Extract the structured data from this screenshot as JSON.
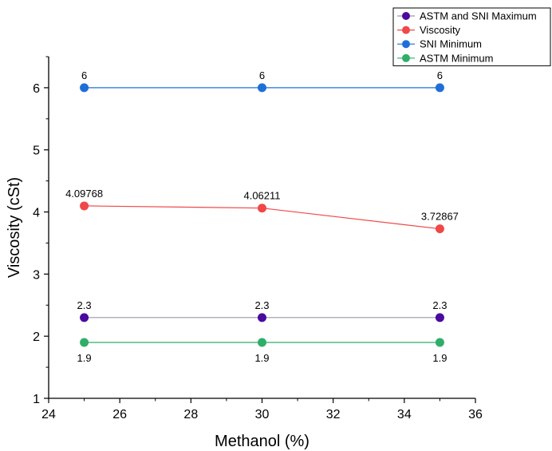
{
  "chart_data": {
    "type": "line",
    "xlabel": "Methanol (%)",
    "ylabel": "Viscosity (cSt)",
    "xlim": [
      24,
      36
    ],
    "ylim": [
      1,
      6.5
    ],
    "x_ticks": [
      24,
      26,
      28,
      30,
      32,
      34,
      36
    ],
    "y_ticks": [
      1,
      2,
      3,
      4,
      5,
      6
    ],
    "x": [
      25,
      30,
      35
    ],
    "legend_position": "top-right",
    "series": [
      {
        "name": "ASTM and SNI Maximum",
        "color": "#4a0a9e",
        "line_color": "#9e95a6",
        "values": [
          2.3,
          2.3,
          2.3
        ],
        "labels": [
          "2.3",
          "2.3",
          "2.3"
        ],
        "label_position": "above"
      },
      {
        "name": "Viscosity",
        "color": "#f04848",
        "line_color": "#f04848",
        "values": [
          4.09768,
          4.06211,
          3.72867
        ],
        "labels": [
          "4.09768",
          "4.06211",
          "3.72867"
        ],
        "label_position": "above"
      },
      {
        "name": "SNI Minimum",
        "color": "#1f6fd8",
        "line_color": "#1f6fd8",
        "values": [
          6,
          6,
          6
        ],
        "labels": [
          "6",
          "6",
          "6"
        ],
        "label_position": "above"
      },
      {
        "name": "ASTM Minimum",
        "color": "#2fae6a",
        "line_color": "#2fae6a",
        "values": [
          1.9,
          1.9,
          1.9
        ],
        "labels": [
          "1.9",
          "1.9",
          "1.9"
        ],
        "label_position": "below"
      }
    ]
  }
}
